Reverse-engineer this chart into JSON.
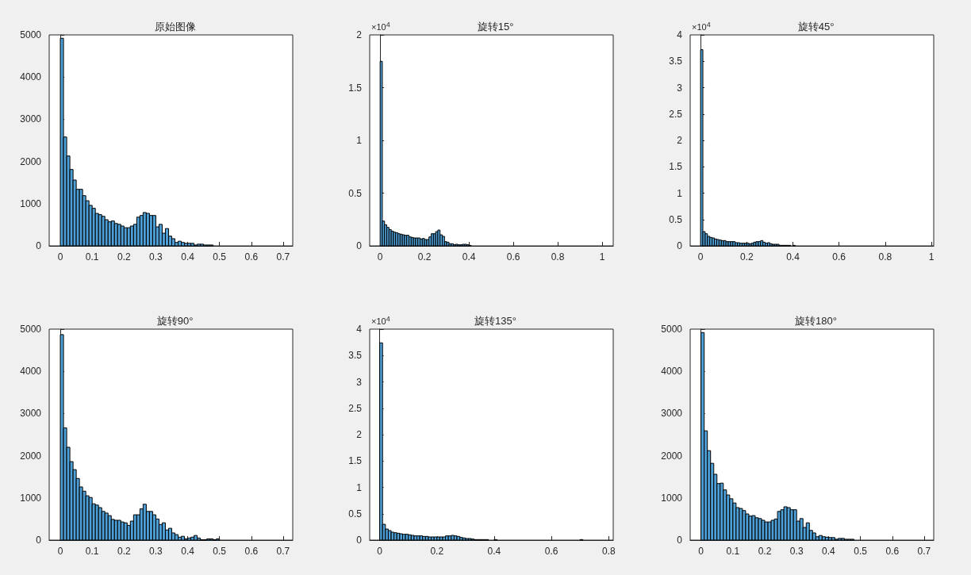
{
  "chart_data": [
    {
      "type": "histogram",
      "title": "原始图像",
      "color": "#4d9fd6",
      "xlim": [
        -0.035,
        0.73
      ],
      "xticks": [
        0,
        0.1,
        0.2,
        0.3,
        0.4,
        0.5,
        0.6,
        0.7
      ],
      "ylim": [
        0,
        5000
      ],
      "yticks": [
        0,
        1000,
        2000,
        3000,
        4000,
        5000
      ],
      "bins": [
        0,
        0.01,
        0.02,
        0.03,
        0.04,
        0.05,
        0.06,
        0.07,
        0.08,
        0.09,
        0.1,
        0.11,
        0.12,
        0.13,
        0.14,
        0.15,
        0.16,
        0.17,
        0.18,
        0.19,
        0.2,
        0.21,
        0.22,
        0.23,
        0.24,
        0.25,
        0.26,
        0.27,
        0.28,
        0.29,
        0.3,
        0.31,
        0.32,
        0.33,
        0.34,
        0.35,
        0.36,
        0.37,
        0.38,
        0.39,
        0.4,
        0.41,
        0.42,
        0.43,
        0.44,
        0.45,
        0.46,
        0.47,
        0.48
      ],
      "values": [
        4920,
        2580,
        2130,
        1810,
        1560,
        1340,
        1340,
        1190,
        1070,
        960,
        890,
        770,
        740,
        700,
        620,
        570,
        590,
        530,
        510,
        470,
        430,
        430,
        470,
        510,
        680,
        720,
        790,
        770,
        720,
        720,
        450,
        510,
        300,
        410,
        230,
        170,
        80,
        110,
        80,
        60,
        60,
        60,
        20,
        40,
        40,
        20,
        20,
        20
      ]
    },
    {
      "type": "histogram",
      "title": "旋转15°",
      "color": "#4d9fd6",
      "xlim": [
        -0.047,
        1.05
      ],
      "xticks": [
        0,
        0.2,
        0.4,
        0.6,
        0.8,
        1
      ],
      "ylim": [
        0,
        2
      ],
      "yticks": [
        0,
        0.5,
        1,
        1.5,
        2
      ],
      "annotations": [
        "×10$^{4}$"
      ],
      "bins": [
        0,
        0.01,
        0.02,
        0.03,
        0.04,
        0.05,
        0.06,
        0.07,
        0.08,
        0.09,
        0.1,
        0.11,
        0.12,
        0.13,
        0.14,
        0.15,
        0.16,
        0.17,
        0.18,
        0.19,
        0.2,
        0.21,
        0.22,
        0.23,
        0.24,
        0.25,
        0.26,
        0.27,
        0.28,
        0.29,
        0.3,
        0.31,
        0.32,
        0.33,
        0.34,
        0.35,
        0.36,
        0.37,
        0.38,
        0.39,
        0.4,
        0.41
      ],
      "values": [
        1.75,
        0.235,
        0.2,
        0.175,
        0.155,
        0.14,
        0.13,
        0.125,
        0.115,
        0.11,
        0.105,
        0.1,
        0.1,
        0.085,
        0.08,
        0.075,
        0.075,
        0.075,
        0.065,
        0.07,
        0.06,
        0.06,
        0.085,
        0.115,
        0.115,
        0.135,
        0.15,
        0.105,
        0.09,
        0.04,
        0.035,
        0.02,
        0.02,
        0.01,
        0.015,
        0.01,
        0.01,
        0.015,
        0.015,
        0.01,
        0.005
      ]
    },
    {
      "type": "histogram",
      "title": "旋转45°",
      "color": "#4d9fd6",
      "xlim": [
        -0.045,
        1.01
      ],
      "xticks": [
        0,
        0.2,
        0.4,
        0.6,
        0.8,
        1
      ],
      "ylim": [
        0,
        4
      ],
      "yticks": [
        0,
        0.5,
        1,
        1.5,
        2,
        2.5,
        3,
        3.5,
        4
      ],
      "annotations": [
        "×10$^{4}$"
      ],
      "bins": [
        0,
        0.01,
        0.02,
        0.03,
        0.04,
        0.05,
        0.06,
        0.07,
        0.08,
        0.09,
        0.1,
        0.11,
        0.12,
        0.13,
        0.14,
        0.15,
        0.16,
        0.17,
        0.18,
        0.19,
        0.2,
        0.21,
        0.22,
        0.23,
        0.24,
        0.25,
        0.26,
        0.27,
        0.28,
        0.29,
        0.3,
        0.31,
        0.32,
        0.33,
        0.34,
        0.35,
        0.36,
        0.37,
        0.38,
        0.39,
        0.4,
        0.41
      ],
      "values": [
        3.72,
        0.27,
        0.23,
        0.18,
        0.16,
        0.15,
        0.13,
        0.12,
        0.11,
        0.1,
        0.1,
        0.08,
        0.08,
        0.08,
        0.08,
        0.06,
        0.06,
        0.05,
        0.05,
        0.05,
        0.05,
        0.04,
        0.05,
        0.07,
        0.08,
        0.08,
        0.1,
        0.07,
        0.05,
        0.06,
        0.04,
        0.03,
        0.03,
        0.03,
        0.01,
        0.01,
        0.01,
        0.01,
        0.01,
        0,
        0.01
      ]
    },
    {
      "type": "histogram",
      "title": "旋转90°",
      "color": "#4d9fd6",
      "xlim": [
        -0.035,
        0.73
      ],
      "xticks": [
        0,
        0.1,
        0.2,
        0.3,
        0.4,
        0.5,
        0.6,
        0.7
      ],
      "ylim": [
        0,
        5000
      ],
      "yticks": [
        0,
        1000,
        2000,
        3000,
        4000,
        5000
      ],
      "bins": [
        0,
        0.01,
        0.02,
        0.03,
        0.04,
        0.05,
        0.06,
        0.07,
        0.08,
        0.09,
        0.1,
        0.11,
        0.12,
        0.13,
        0.14,
        0.15,
        0.16,
        0.17,
        0.18,
        0.19,
        0.2,
        0.21,
        0.22,
        0.23,
        0.24,
        0.25,
        0.26,
        0.27,
        0.28,
        0.29,
        0.3,
        0.31,
        0.32,
        0.33,
        0.34,
        0.35,
        0.36,
        0.37,
        0.38,
        0.39,
        0.4,
        0.41,
        0.42,
        0.43,
        0.44,
        0.45,
        0.46,
        0.47,
        0.48,
        0.49,
        0.5
      ],
      "values": [
        4870,
        2660,
        2200,
        1860,
        1670,
        1460,
        1260,
        1160,
        1050,
        1010,
        860,
        830,
        770,
        680,
        640,
        580,
        490,
        470,
        470,
        430,
        410,
        350,
        450,
        600,
        600,
        740,
        850,
        680,
        680,
        600,
        500,
        370,
        410,
        240,
        280,
        170,
        130,
        70,
        90,
        30,
        50,
        70,
        110,
        50,
        10,
        10,
        30,
        30,
        10,
        30
      ]
    },
    {
      "type": "histogram",
      "title": "旋转135°",
      "color": "#4d9fd6",
      "xlim": [
        -0.035,
        0.816
      ],
      "xticks": [
        0,
        0.2,
        0.4,
        0.6,
        0.8
      ],
      "ylim": [
        0,
        4
      ],
      "yticks": [
        0,
        0.5,
        1,
        1.5,
        2,
        2.5,
        3,
        3.5,
        4
      ],
      "annotations": [
        "×10$^{4}$"
      ],
      "bins": [
        0,
        0.01,
        0.02,
        0.03,
        0.04,
        0.05,
        0.06,
        0.07,
        0.08,
        0.09,
        0.1,
        0.11,
        0.12,
        0.13,
        0.14,
        0.15,
        0.16,
        0.17,
        0.18,
        0.19,
        0.2,
        0.21,
        0.22,
        0.23,
        0.24,
        0.25,
        0.26,
        0.27,
        0.28,
        0.29,
        0.3,
        0.31,
        0.32,
        0.33,
        0.34,
        0.35,
        0.36,
        0.37,
        0.38,
        0.39,
        0.4,
        0.41,
        0.42,
        0.43,
        0.44,
        0.45,
        0.46,
        0.47,
        0.48,
        0.49,
        0.5,
        0.51,
        0.52,
        0.53,
        0.54,
        0.55,
        0.56,
        0.57,
        0.58,
        0.59,
        0.6,
        0.61,
        0.62,
        0.63,
        0.64,
        0.65,
        0.66,
        0.67,
        0.68,
        0.69,
        0.7,
        0.71
      ],
      "values": [
        3.74,
        0.3,
        0.21,
        0.18,
        0.15,
        0.14,
        0.13,
        0.12,
        0.11,
        0.11,
        0.1,
        0.09,
        0.08,
        0.08,
        0.08,
        0.07,
        0.07,
        0.06,
        0.06,
        0.06,
        0.06,
        0.06,
        0.06,
        0.08,
        0.08,
        0.09,
        0.08,
        0.07,
        0.05,
        0.04,
        0.03,
        0.03,
        0.02,
        0.01,
        0.01,
        0.01,
        0.01,
        0.01,
        0,
        0,
        0.01,
        0,
        0,
        0,
        0,
        0,
        0,
        0,
        0,
        0,
        0,
        0,
        0,
        0,
        0,
        0,
        0,
        0,
        0,
        0,
        0,
        0,
        0,
        0,
        0,
        0,
        0,
        0,
        0,
        0,
        0.01
      ]
    },
    {
      "type": "histogram",
      "title": "旋转180°",
      "color": "#4d9fd6",
      "xlim": [
        -0.034,
        0.73
      ],
      "xticks": [
        0,
        0.1,
        0.2,
        0.3,
        0.4,
        0.5,
        0.6,
        0.7
      ],
      "ylim": [
        0,
        5000
      ],
      "yticks": [
        0,
        1000,
        2000,
        3000,
        4000,
        5000
      ],
      "bins": [
        0,
        0.01,
        0.02,
        0.03,
        0.04,
        0.05,
        0.06,
        0.07,
        0.08,
        0.09,
        0.1,
        0.11,
        0.12,
        0.13,
        0.14,
        0.15,
        0.16,
        0.17,
        0.18,
        0.19,
        0.2,
        0.21,
        0.22,
        0.23,
        0.24,
        0.25,
        0.26,
        0.27,
        0.28,
        0.29,
        0.3,
        0.31,
        0.32,
        0.33,
        0.34,
        0.35,
        0.36,
        0.37,
        0.38,
        0.39,
        0.4,
        0.41,
        0.42,
        0.43,
        0.44,
        0.45,
        0.46,
        0.47,
        0.48
      ],
      "values": [
        4920,
        2590,
        2120,
        1820,
        1560,
        1340,
        1350,
        1190,
        1070,
        980,
        880,
        770,
        750,
        700,
        620,
        570,
        580,
        530,
        510,
        470,
        430,
        430,
        470,
        500,
        680,
        720,
        790,
        770,
        720,
        720,
        450,
        510,
        300,
        410,
        230,
        170,
        80,
        110,
        80,
        70,
        60,
        60,
        20,
        40,
        40,
        20,
        20,
        20
      ]
    }
  ]
}
